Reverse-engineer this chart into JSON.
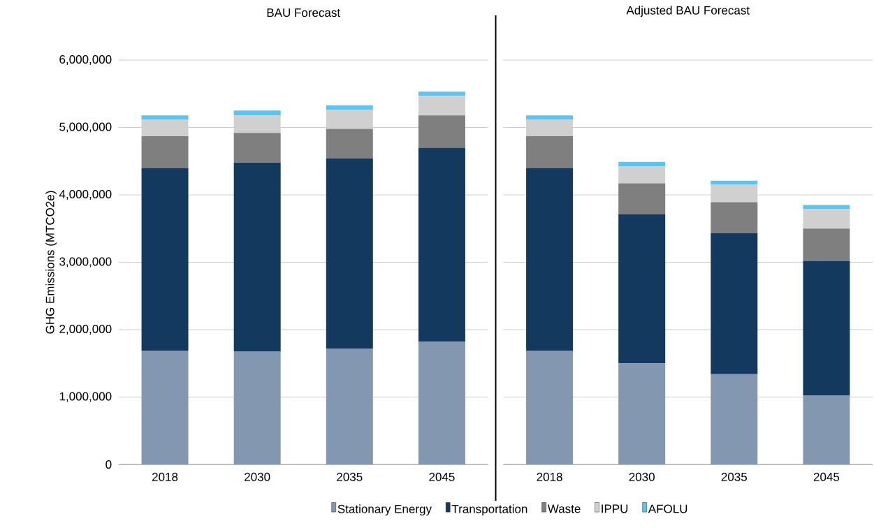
{
  "chart_data": [
    {
      "type": "bar",
      "stacked": true,
      "title": "BAU Forecast",
      "ylabel": "GHG Emissions (MTCO2e)",
      "categories": [
        "2018",
        "2030",
        "2035",
        "2045"
      ],
      "series": [
        {
          "name": "Stationary Energy",
          "color": "#8497b0",
          "values": [
            1690000,
            1680000,
            1720000,
            1820000
          ]
        },
        {
          "name": "Transportation",
          "color": "#133a5e",
          "values": [
            2710000,
            2800000,
            2820000,
            2880000
          ]
        },
        {
          "name": "Waste",
          "color": "#7f7f7f",
          "values": [
            470000,
            440000,
            440000,
            480000
          ]
        },
        {
          "name": "IPPU",
          "color": "#d0d0d0",
          "values": [
            250000,
            260000,
            280000,
            290000
          ]
        },
        {
          "name": "AFOLU",
          "color": "#5bc5f2",
          "values": [
            60000,
            70000,
            70000,
            60000
          ]
        }
      ],
      "ylim": [
        0,
        6000000
      ],
      "yticks": [
        {
          "value": 0,
          "label": "0"
        },
        {
          "value": 1000000,
          "label": "1,000,000"
        },
        {
          "value": 2000000,
          "label": "2,000,000"
        },
        {
          "value": 3000000,
          "label": "3,000,000"
        },
        {
          "value": 4000000,
          "label": "4,000,000"
        },
        {
          "value": 5000000,
          "label": "5,000,000"
        },
        {
          "value": 6000000,
          "label": "6,000,000"
        }
      ],
      "grid": "y",
      "legend": "bottom"
    },
    {
      "type": "bar",
      "stacked": true,
      "title": "Adjusted BAU Forecast",
      "categories": [
        "2018",
        "2030",
        "2035",
        "2045"
      ],
      "series": [
        {
          "color": "#8497b0",
          "values": [
            1690000,
            1500000,
            1340000,
            1020000
          ]
        },
        {
          "color": "#133a5e",
          "values": [
            2710000,
            2210000,
            2090000,
            2000000
          ]
        },
        {
          "color": "#7f7f7f",
          "values": [
            470000,
            460000,
            460000,
            480000
          ]
        },
        {
          "color": "#d0d0d0",
          "values": [
            250000,
            250000,
            260000,
            290000
          ]
        },
        {
          "color": "#5bc5f2",
          "values": [
            60000,
            70000,
            60000,
            60000
          ]
        }
      ],
      "ylim": [
        0,
        6000000
      ],
      "yticks": [
        0,
        1000000,
        2000000,
        3000000,
        4000000,
        5000000,
        6000000
      ],
      "tick_labels": "x",
      "grid": "y"
    }
  ]
}
